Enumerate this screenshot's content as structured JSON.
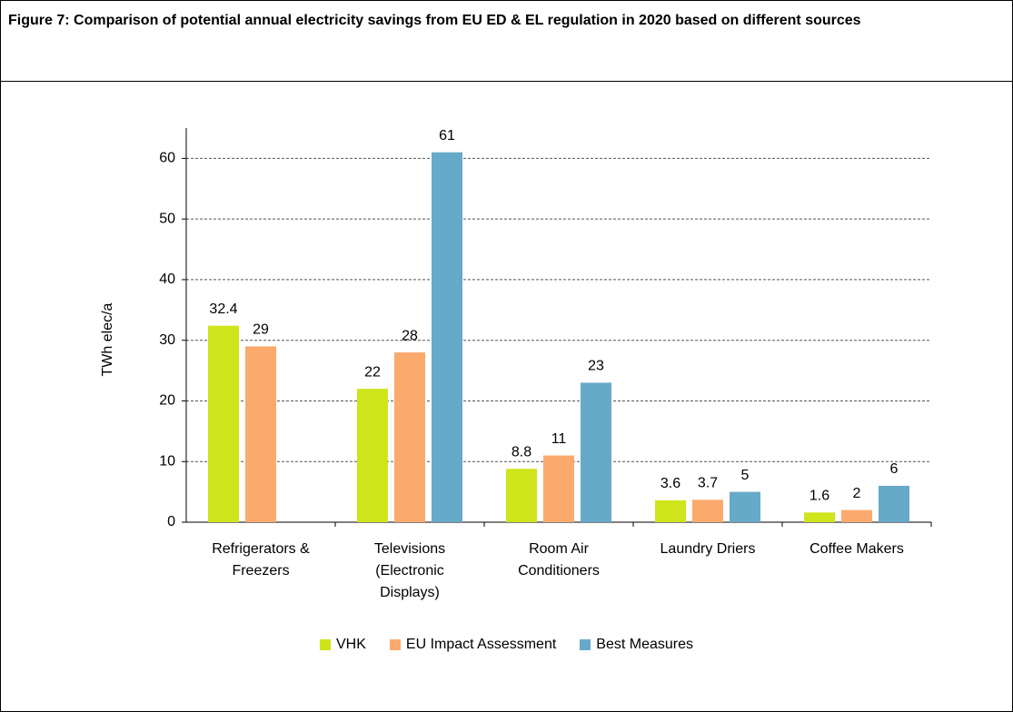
{
  "chart_data": {
    "type": "bar",
    "title": "Figure 7: Comparison of potential annual electricity savings from EU ED & EL regulation in 2020 based on different sources",
    "ylabel": "TWh elec/a",
    "categories": [
      "Refrigerators & Freezers",
      "Televisions (Electronic Displays)",
      "Room Air Conditioners",
      "Laundry Driers",
      "Coffee Makers"
    ],
    "series": [
      {
        "name": "VHK",
        "color": "#cfe41a",
        "values": [
          32.4,
          22,
          8.8,
          3.6,
          1.6
        ]
      },
      {
        "name": "EU Impact Assessment",
        "color": "#fbaa6e",
        "values": [
          29,
          28,
          11,
          3.7,
          2
        ]
      },
      {
        "name": "Best Measures",
        "color": "#67a9c9",
        "values": [
          null,
          61,
          23,
          5,
          6
        ]
      }
    ],
    "ylim": [
      0,
      65
    ],
    "yticks": [
      0,
      10,
      20,
      30,
      40,
      50,
      60
    ],
    "grid": true,
    "legend": "bottom"
  }
}
